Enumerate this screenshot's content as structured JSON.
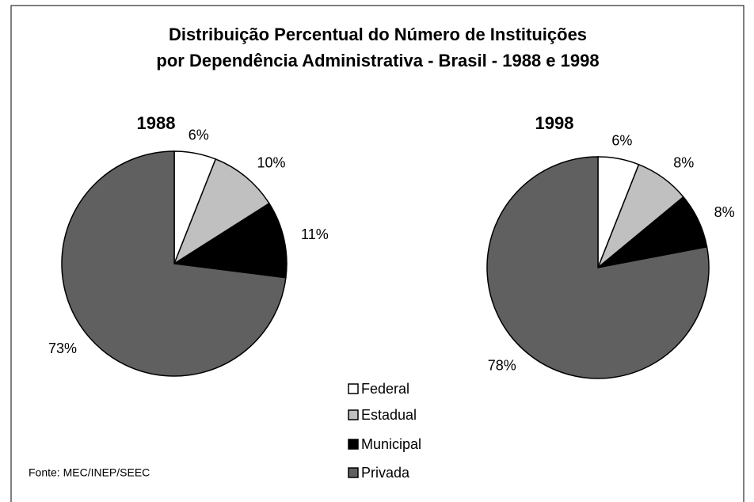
{
  "title": [
    "Distribuição Percentual do Número de Instituições",
    "por Dependência Administrativa - Brasil - 1988 e 1998"
  ],
  "source": "Fonte: MEC/INEP/SEEC",
  "chart_data": [
    {
      "type": "pie",
      "title": "1988",
      "categories": [
        "Federal",
        "Estadual",
        "Municipal",
        "Privada"
      ],
      "values": [
        6,
        10,
        11,
        73
      ],
      "value_labels": [
        "6%",
        "10%",
        "11%",
        "73%"
      ],
      "colors": [
        "#ffffff",
        "#c0c0c0",
        "#000000",
        "#606060"
      ],
      "legend": "bottom"
    },
    {
      "type": "pie",
      "title": "1998",
      "categories": [
        "Federal",
        "Estadual",
        "Municipal",
        "Privada"
      ],
      "values": [
        6,
        8,
        8,
        78
      ],
      "value_labels": [
        "6%",
        "8%",
        "8%",
        "78%"
      ],
      "colors": [
        "#ffffff",
        "#c0c0c0",
        "#000000",
        "#606060"
      ]
    }
  ]
}
